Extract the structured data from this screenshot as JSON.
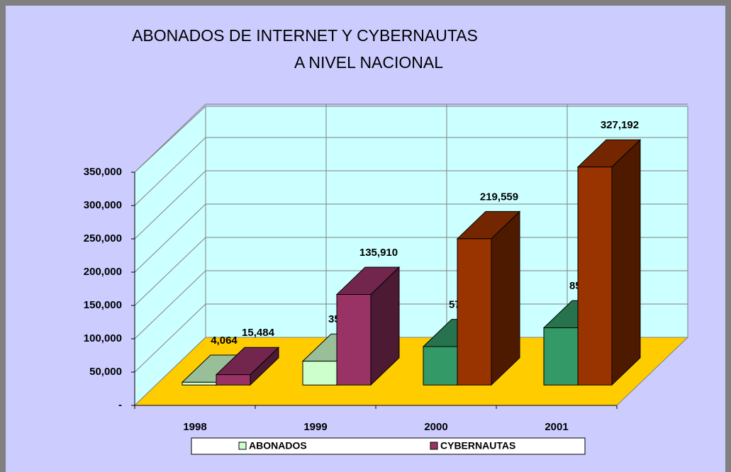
{
  "chart_data": {
    "type": "bar3d",
    "title": [
      "ABONADOS DE INTERNET Y CYBERNAUTAS",
      "A NIVEL NACIONAL"
    ],
    "categories": [
      "1998",
      "1999",
      "2000",
      "2001"
    ],
    "series": [
      {
        "name": "ABONADOS",
        "color": "#ccffcc",
        "colors": [
          "#ccffcc",
          "#ccffcc",
          "#339966",
          "#339966"
        ],
        "values": [
          4064,
          35672,
          57627,
          85808
        ],
        "value_labels": [
          "4,064",
          "35,672",
          "57,627",
          "85,808"
        ]
      },
      {
        "name": "CYBERNAUTAS",
        "color": "#993366",
        "colors": [
          "#993366",
          "#993366",
          "#993300",
          "#993300"
        ],
        "values": [
          15484,
          135910,
          219559,
          327192
        ],
        "value_labels": [
          "15,484",
          "135,910",
          "219,559",
          "327,192"
        ]
      }
    ],
    "ylim": [
      0,
      350000
    ],
    "yticks": [
      {
        "value": 0,
        "label": "-"
      },
      {
        "value": 50000,
        "label": "50,000"
      },
      {
        "value": 100000,
        "label": "100,000"
      },
      {
        "value": 150000,
        "label": "150,000"
      },
      {
        "value": 200000,
        "label": "200,000"
      },
      {
        "value": 250000,
        "label": "250,000"
      },
      {
        "value": 300000,
        "label": "300,000"
      },
      {
        "value": 350000,
        "label": "350,000"
      }
    ],
    "grid": true,
    "legend": "bottom"
  }
}
